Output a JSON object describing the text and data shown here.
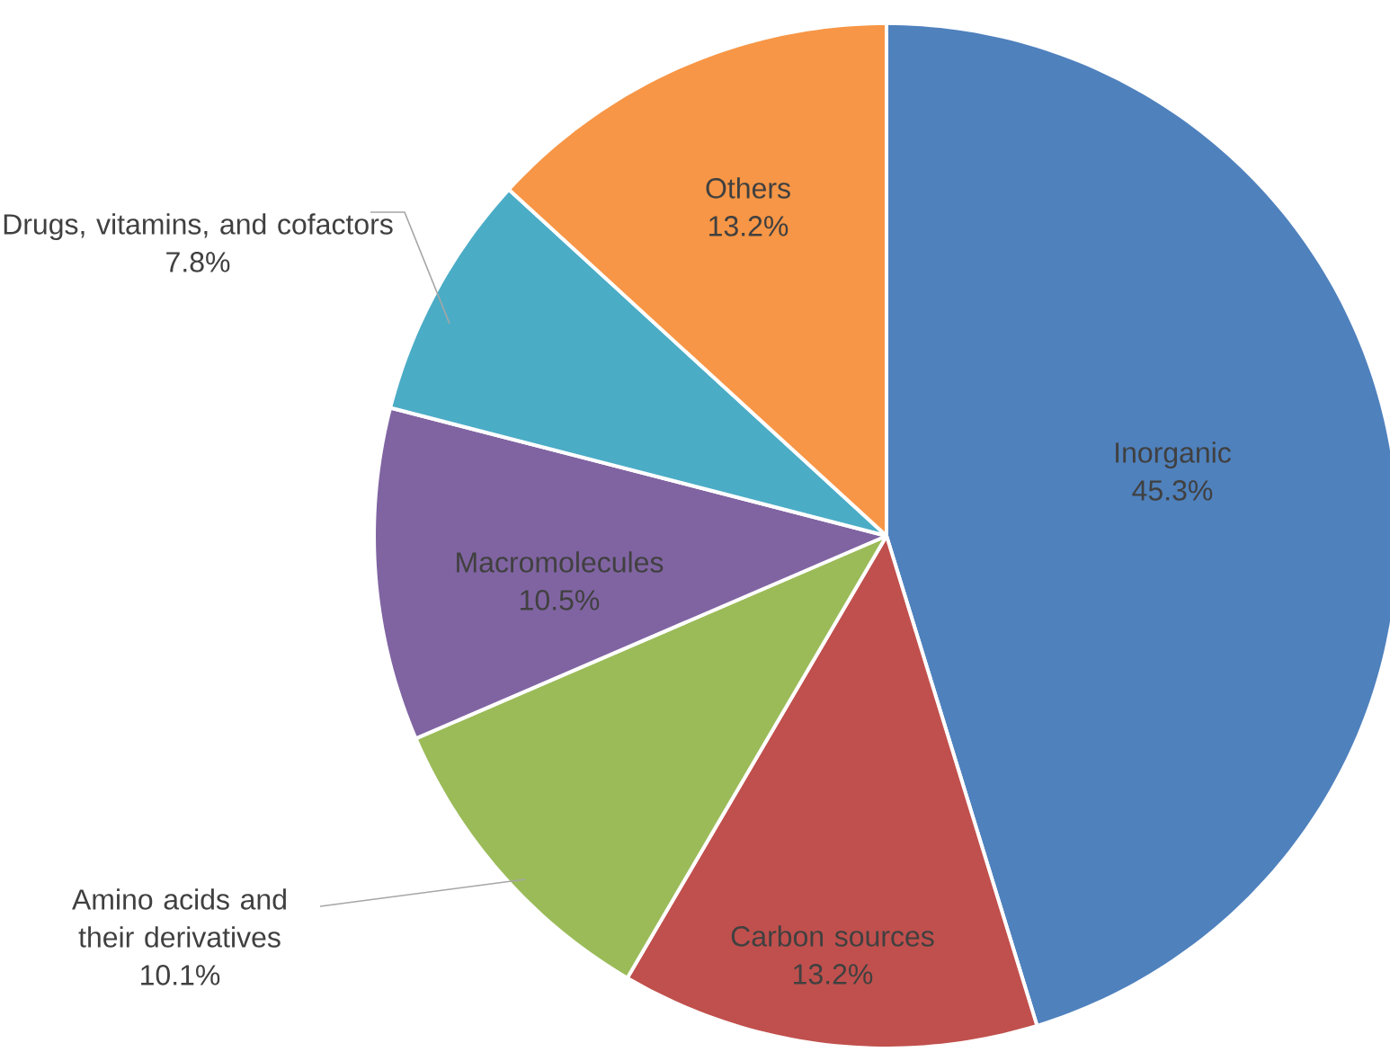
{
  "chart_data": {
    "type": "pie",
    "categories": [
      "Inorganic",
      "Carbon sources",
      "Amino acids and their derivatives",
      "Macromolecules",
      "Drugs, vitamins, and cofactors",
      "Others"
    ],
    "values": [
      45.3,
      13.2,
      10.1,
      10.5,
      7.8,
      13.2
    ],
    "value_labels": [
      "45.3%",
      "13.2%",
      "10.1%",
      "10.5%",
      "7.8%",
      "13.2%"
    ],
    "colors": [
      "#4f81bd",
      "#c0504d",
      "#9bbb59",
      "#8064a2",
      "#4bacc6",
      "#f79646"
    ]
  }
}
